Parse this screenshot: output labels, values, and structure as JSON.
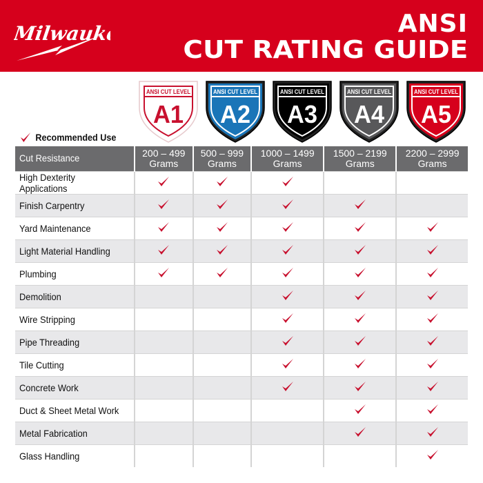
{
  "brand": "Milwaukee",
  "title": {
    "line1": "ANSI",
    "line2": "CUT RATING GUIDE"
  },
  "legend": {
    "label": "Recommended Use",
    "icon": "check-icon"
  },
  "colors": {
    "brand_red": "#d6001c",
    "check": "#c8102e",
    "header_gray": "#6b6b6d"
  },
  "levels": [
    {
      "caption": "ANSI CUT LEVEL",
      "code": "A1",
      "fill": "#ffffff",
      "border": "#c8102e",
      "text": "#c8102e"
    },
    {
      "caption": "ANSI CUT LEVEL",
      "code": "A2",
      "fill": "#1a75b8",
      "border": "#ffffff",
      "text": "#ffffff"
    },
    {
      "caption": "ANSI CUT LEVEL",
      "code": "A3",
      "fill": "#000000",
      "border": "#ffffff",
      "text": "#ffffff"
    },
    {
      "caption": "ANSI CUT LEVEL",
      "code": "A4",
      "fill": "#58585a",
      "border": "#ffffff",
      "text": "#ffffff"
    },
    {
      "caption": "ANSI CUT LEVEL",
      "code": "A5",
      "fill": "#d6001c",
      "border": "#ffffff",
      "text": "#ffffff"
    }
  ],
  "table": {
    "header": "Cut Resistance",
    "columns": [
      [
        "200 – 499",
        "Grams"
      ],
      [
        "500 – 999",
        "Grams"
      ],
      [
        "1000 – 1499",
        "Grams"
      ],
      [
        "1500 – 2199",
        "Grams"
      ],
      [
        "2200 – 2999",
        "Grams"
      ]
    ],
    "rows": [
      {
        "label": "High Dexterity Applications",
        "checks": [
          1,
          1,
          1,
          0,
          0
        ]
      },
      {
        "label": "Finish Carpentry",
        "checks": [
          1,
          1,
          1,
          1,
          0
        ]
      },
      {
        "label": "Yard Maintenance",
        "checks": [
          1,
          1,
          1,
          1,
          1
        ]
      },
      {
        "label": "Light Material Handling",
        "checks": [
          1,
          1,
          1,
          1,
          1
        ]
      },
      {
        "label": "Plumbing",
        "checks": [
          1,
          1,
          1,
          1,
          1
        ]
      },
      {
        "label": "Demolition",
        "checks": [
          0,
          0,
          1,
          1,
          1
        ]
      },
      {
        "label": "Wire Stripping",
        "checks": [
          0,
          0,
          1,
          1,
          1
        ]
      },
      {
        "label": "Pipe Threading",
        "checks": [
          0,
          0,
          1,
          1,
          1
        ]
      },
      {
        "label": "Tile Cutting",
        "checks": [
          0,
          0,
          1,
          1,
          1
        ]
      },
      {
        "label": "Concrete Work",
        "checks": [
          0,
          0,
          1,
          1,
          1
        ]
      },
      {
        "label": "Duct & Sheet Metal Work",
        "checks": [
          0,
          0,
          0,
          1,
          1
        ]
      },
      {
        "label": "Metal Fabrication",
        "checks": [
          0,
          0,
          0,
          1,
          1
        ]
      },
      {
        "label": "Glass Handling",
        "checks": [
          0,
          0,
          0,
          0,
          1
        ]
      }
    ]
  }
}
